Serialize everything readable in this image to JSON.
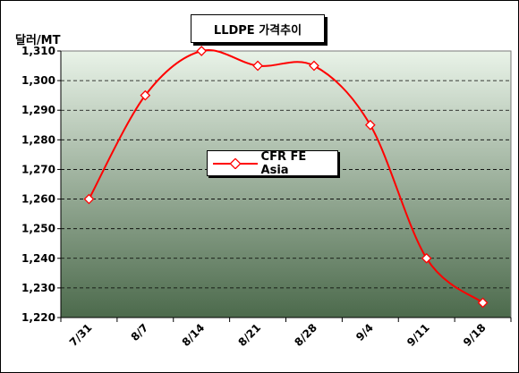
{
  "chart_data": {
    "type": "line",
    "title": "LLDPE 가격추이",
    "ylabel": "달러/MT",
    "xlabel": "",
    "categories": [
      "7/31",
      "8/7",
      "8/14",
      "8/21",
      "8/28",
      "9/4",
      "9/11",
      "9/18"
    ],
    "series": [
      {
        "name": "CFR FE Asia",
        "values": [
          1260,
          1295,
          1310,
          1305,
          1305,
          1285,
          1240,
          1225
        ]
      }
    ],
    "ylim": [
      1220,
      1310
    ],
    "yticks": [
      "1,220",
      "1,230",
      "1,240",
      "1,250",
      "1,260",
      "1,270",
      "1,280",
      "1,290",
      "1,300",
      "1,310"
    ],
    "grid": true,
    "legend_position": "center",
    "colors": {
      "line": "#ff0000",
      "marker_fill": "#ffffff",
      "plot_bg_top": "#e9f3e8",
      "plot_bg_bottom": "#4c6a4c"
    }
  }
}
